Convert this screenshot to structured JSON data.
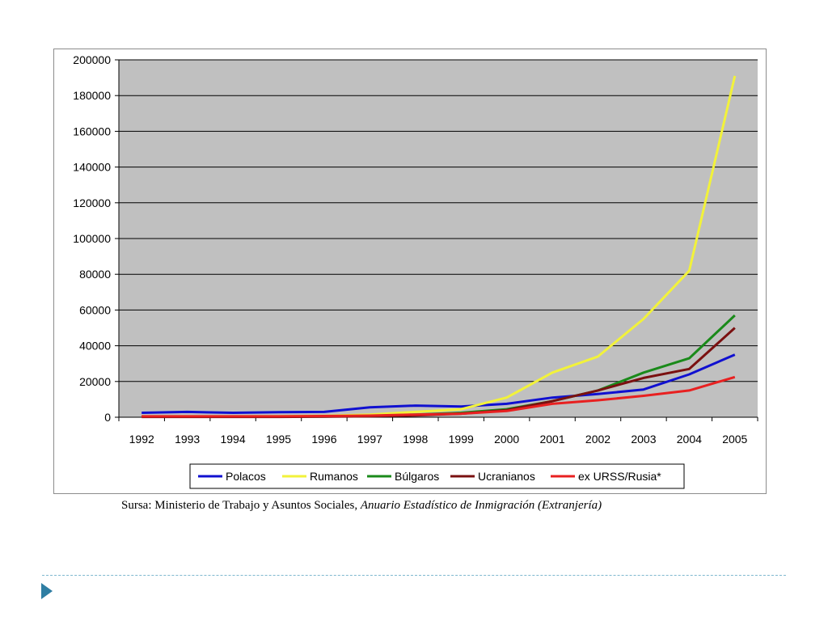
{
  "chart_data": {
    "type": "line",
    "categories": [
      "1992",
      "1993",
      "1994",
      "1995",
      "1996",
      "1997",
      "1998",
      "1999",
      "2000",
      "2001",
      "2002",
      "2003",
      "2004",
      "2005"
    ],
    "ylim": [
      0,
      200000
    ],
    "yticks": [
      "0",
      "20000",
      "40000",
      "60000",
      "80000",
      "100000",
      "120000",
      "140000",
      "160000",
      "180000",
      "200000"
    ],
    "grid": true,
    "legend_position": "bottom",
    "series": [
      {
        "name": "Polacos",
        "color": "#1010d0",
        "values": [
          2500,
          3000,
          2500,
          2800,
          3000,
          5500,
          6500,
          6000,
          7500,
          11000,
          13000,
          15500,
          24000,
          35000
        ]
      },
      {
        "name": "Rumanos",
        "color": "#f2f23a",
        "values": [
          500,
          500,
          500,
          600,
          800,
          1500,
          3000,
          4500,
          11000,
          25000,
          34000,
          55000,
          82000,
          191000
        ]
      },
      {
        "name": "Búlgaros",
        "color": "#1a8a1a",
        "values": [
          300,
          300,
          300,
          300,
          400,
          700,
          1500,
          2500,
          4500,
          9000,
          15000,
          25000,
          33000,
          57000
        ]
      },
      {
        "name": "Ucranianos",
        "color": "#7a1010",
        "values": [
          200,
          200,
          200,
          200,
          300,
          500,
          1000,
          2000,
          4000,
          9000,
          15000,
          22000,
          27000,
          50000
        ]
      },
      {
        "name": "ex URSS/Rusia*",
        "color": "#e82020",
        "values": [
          500,
          500,
          500,
          500,
          700,
          900,
          1500,
          2000,
          3500,
          7500,
          9500,
          12000,
          15000,
          22500
        ]
      }
    ]
  },
  "source": {
    "prefix": "Sursa: Ministerio de Trabajo y Asuntos Sociales, ",
    "italic": "Anuario Estadístico de Inmigración (Extranjería)"
  }
}
